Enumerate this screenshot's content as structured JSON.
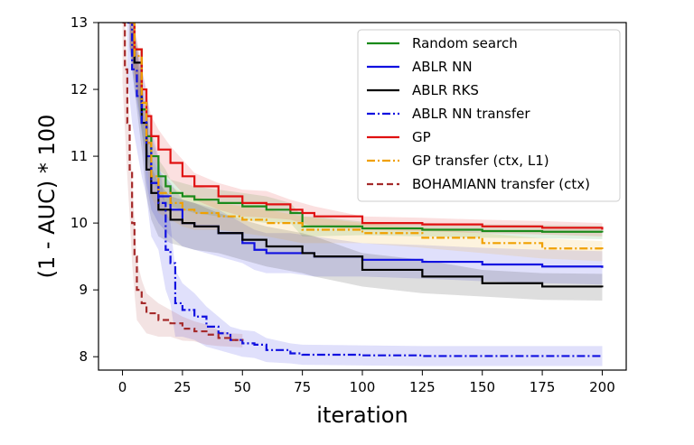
{
  "chart_data": {
    "type": "line",
    "xlabel": "iteration",
    "ylabel": "(1 - AUC) * 100",
    "xlim": [
      -10,
      210
    ],
    "ylim": [
      7.8,
      13
    ],
    "xticks": [
      0,
      25,
      50,
      75,
      100,
      125,
      150,
      175,
      200
    ],
    "yticks": [
      8,
      9,
      10,
      11,
      12,
      13
    ],
    "legend_position": "top-right",
    "series": [
      {
        "name": "Random search",
        "color": "#1a8a1a",
        "dash": "solid",
        "x": [
          3,
          5,
          8,
          10,
          12,
          15,
          18,
          20,
          25,
          30,
          40,
          50,
          60,
          70,
          75,
          80,
          100,
          125,
          150,
          175,
          200
        ],
        "y": [
          13.0,
          12.6,
          11.7,
          11.3,
          11.0,
          10.7,
          10.55,
          10.45,
          10.4,
          10.35,
          10.3,
          10.25,
          10.2,
          10.15,
          9.95,
          9.95,
          9.92,
          9.9,
          9.88,
          9.87,
          9.86
        ],
        "band": [
          0.35,
          0.35,
          0.35,
          0.3,
          0.3,
          0.25,
          0.25,
          0.2,
          0.2,
          0.2,
          0.2,
          0.2,
          0.2,
          0.15,
          0.15,
          0.15,
          0.1,
          0.1,
          0.1,
          0.1,
          0.1
        ]
      },
      {
        "name": "ABLR NN",
        "color": "#1010e0",
        "dash": "solid",
        "x": [
          3,
          5,
          8,
          10,
          12,
          15,
          20,
          25,
          30,
          40,
          50,
          55,
          60,
          70,
          80,
          100,
          125,
          150,
          175,
          200
        ],
        "y": [
          13.0,
          12.4,
          11.8,
          11.0,
          10.6,
          10.4,
          10.2,
          10.0,
          9.95,
          9.85,
          9.7,
          9.6,
          9.55,
          9.55,
          9.5,
          9.45,
          9.42,
          9.38,
          9.35,
          9.33
        ],
        "band": [
          0.4,
          0.4,
          0.4,
          0.4,
          0.4,
          0.4,
          0.4,
          0.35,
          0.35,
          0.35,
          0.3,
          0.3,
          0.3,
          0.3,
          0.3,
          0.25,
          0.25,
          0.25,
          0.25,
          0.25
        ]
      },
      {
        "name": "ABLR RKS",
        "color": "#000000",
        "dash": "solid",
        "x": [
          3,
          5,
          8,
          10,
          12,
          15,
          20,
          25,
          30,
          40,
          50,
          60,
          75,
          80,
          100,
          125,
          150,
          175,
          200
        ],
        "y": [
          13.0,
          12.4,
          11.5,
          10.8,
          10.45,
          10.2,
          10.05,
          10.0,
          9.95,
          9.85,
          9.75,
          9.65,
          9.55,
          9.5,
          9.3,
          9.2,
          9.1,
          9.05,
          9.04
        ],
        "band": [
          0.4,
          0.4,
          0.4,
          0.4,
          0.4,
          0.4,
          0.35,
          0.35,
          0.35,
          0.3,
          0.3,
          0.3,
          0.3,
          0.3,
          0.25,
          0.25,
          0.2,
          0.2,
          0.2
        ]
      },
      {
        "name": "ABLR NN transfer",
        "color": "#1010e0",
        "dash": "dashdot",
        "x": [
          2,
          4,
          6,
          8,
          10,
          12,
          15,
          18,
          20,
          22,
          25,
          30,
          35,
          40,
          45,
          50,
          55,
          60,
          70,
          75,
          100,
          125,
          150,
          175,
          200
        ],
        "y": [
          13.0,
          12.3,
          11.9,
          11.5,
          11.2,
          10.6,
          10.3,
          9.6,
          9.4,
          8.8,
          8.7,
          8.6,
          8.45,
          8.35,
          8.25,
          8.2,
          8.18,
          8.1,
          8.05,
          8.03,
          8.02,
          8.01,
          8.01,
          8.01,
          8.01
        ],
        "band": [
          0.8,
          0.8,
          0.8,
          0.8,
          0.8,
          0.8,
          0.7,
          0.6,
          0.6,
          0.5,
          0.4,
          0.35,
          0.3,
          0.25,
          0.2,
          0.2,
          0.2,
          0.18,
          0.15,
          0.15,
          0.15,
          0.15,
          0.15,
          0.15,
          0.15
        ]
      },
      {
        "name": "GP",
        "color": "#e01010",
        "dash": "solid",
        "x": [
          3,
          5,
          8,
          10,
          12,
          15,
          20,
          25,
          30,
          40,
          50,
          60,
          70,
          75,
          80,
          100,
          125,
          150,
          175,
          200
        ],
        "y": [
          13.0,
          12.6,
          12.0,
          11.6,
          11.3,
          11.1,
          10.9,
          10.7,
          10.55,
          10.4,
          10.3,
          10.28,
          10.2,
          10.15,
          10.1,
          10.0,
          9.98,
          9.95,
          9.93,
          9.9
        ],
        "band": [
          0.35,
          0.35,
          0.35,
          0.3,
          0.3,
          0.3,
          0.25,
          0.25,
          0.2,
          0.2,
          0.2,
          0.2,
          0.15,
          0.15,
          0.15,
          0.1,
          0.1,
          0.1,
          0.1,
          0.1
        ]
      },
      {
        "name": "GP transfer (ctx, L1)",
        "color": "#f0a000",
        "dash": "dashdot",
        "x": [
          3,
          5,
          8,
          10,
          12,
          15,
          20,
          25,
          30,
          40,
          50,
          60,
          75,
          100,
          125,
          150,
          175,
          200
        ],
        "y": [
          13.0,
          12.5,
          11.8,
          11.2,
          10.7,
          10.45,
          10.3,
          10.2,
          10.15,
          10.1,
          10.05,
          10.0,
          9.9,
          9.85,
          9.78,
          9.7,
          9.62,
          9.58
        ],
        "band": [
          0.35,
          0.35,
          0.35,
          0.3,
          0.3,
          0.3,
          0.25,
          0.25,
          0.25,
          0.2,
          0.2,
          0.2,
          0.2,
          0.15,
          0.15,
          0.15,
          0.15,
          0.15
        ]
      },
      {
        "name": "BOHAMIANN transfer (ctx)",
        "color": "#a52a2a",
        "dash": "dashed",
        "x": [
          0,
          1,
          2,
          3,
          4,
          5,
          6,
          8,
          10,
          15,
          20,
          25,
          30,
          35,
          40,
          45,
          50
        ],
        "y": [
          13.0,
          12.3,
          11.5,
          10.8,
          10.0,
          9.5,
          9.0,
          8.8,
          8.65,
          8.55,
          8.5,
          8.42,
          8.38,
          8.33,
          8.28,
          8.25,
          8.24
        ],
        "band": [
          0.9,
          0.9,
          0.8,
          0.7,
          0.6,
          0.55,
          0.45,
          0.35,
          0.3,
          0.25,
          0.2,
          0.18,
          0.15,
          0.15,
          0.12,
          0.1,
          0.1
        ]
      }
    ]
  }
}
